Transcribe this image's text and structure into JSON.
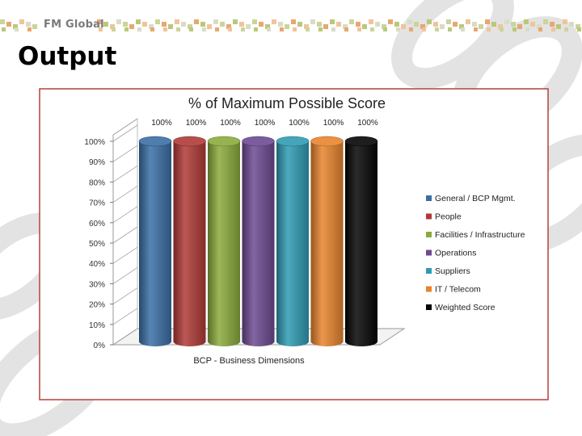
{
  "slide": {
    "brand": "FM Global",
    "title": "Output"
  },
  "colors": {
    "header_squares": [
      "#c9d59a",
      "#e8a771",
      "#b9c979",
      "#f0c49b",
      "#d9dcc6"
    ],
    "frame_border": "#b5413d",
    "chain_fill": "#e9e9e9"
  },
  "chart_data": {
    "type": "bar",
    "style": "3d-cylinder",
    "title": "% of Maximum Possible Score",
    "xlabel": "BCP - Business Dimensions",
    "ylabel": "",
    "ylim": [
      0,
      100
    ],
    "yticks": [
      "0%",
      "10%",
      "20%",
      "30%",
      "40%",
      "50%",
      "60%",
      "70%",
      "80%",
      "90%",
      "100%"
    ],
    "grid": false,
    "legend_position": "right",
    "series": [
      {
        "name": "General / BCP Mgmt.",
        "value": 100,
        "label": "100%",
        "color": "#3a6ea5"
      },
      {
        "name": "People",
        "value": 100,
        "label": "100%",
        "color": "#b03a37"
      },
      {
        "name": "Facilities / Infrastructure",
        "value": 100,
        "label": "100%",
        "color": "#8aab3c"
      },
      {
        "name": "Operations",
        "value": 100,
        "label": "100%",
        "color": "#6c4a91"
      },
      {
        "name": "Suppliers",
        "value": 100,
        "label": "100%",
        "color": "#2f9bb3"
      },
      {
        "name": "IT / Telecom",
        "value": 100,
        "label": "100%",
        "color": "#e8852d"
      },
      {
        "name": "Weighted Score",
        "value": 100,
        "label": "100%",
        "color": "#050505"
      }
    ]
  }
}
